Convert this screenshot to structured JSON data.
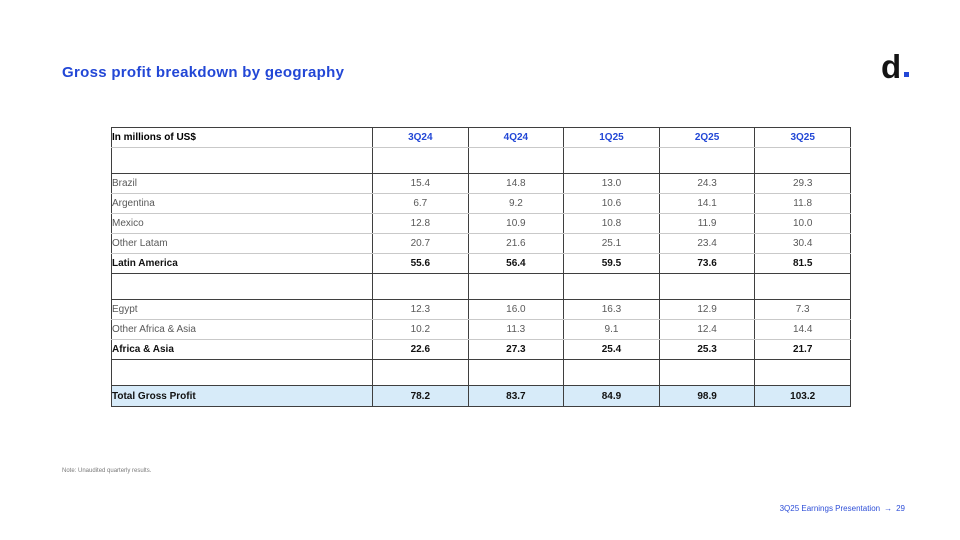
{
  "title": "Gross profit breakdown by geography",
  "logo": {
    "text": "d"
  },
  "table": {
    "header": {
      "label": "In millions of US$",
      "columns": [
        "3Q24",
        "4Q24",
        "1Q25",
        "2Q25",
        "3Q25"
      ]
    },
    "rows": [
      {
        "type": "spacer"
      },
      {
        "type": "data",
        "label": "Brazil",
        "values": [
          "15.4",
          "14.8",
          "13.0",
          "24.3",
          "29.3"
        ]
      },
      {
        "type": "data",
        "label": "Argentina",
        "values": [
          "6.7",
          "9.2",
          "10.6",
          "14.1",
          "11.8"
        ]
      },
      {
        "type": "data",
        "label": "Mexico",
        "values": [
          "12.8",
          "10.9",
          "10.8",
          "11.9",
          "10.0"
        ]
      },
      {
        "type": "data",
        "label": "Other Latam",
        "values": [
          "20.7",
          "21.6",
          "25.1",
          "23.4",
          "30.4"
        ]
      },
      {
        "type": "subtotal",
        "label": "Latin America",
        "values": [
          "55.6",
          "56.4",
          "59.5",
          "73.6",
          "81.5"
        ]
      },
      {
        "type": "spacer"
      },
      {
        "type": "data",
        "label": "Egypt",
        "values": [
          "12.3",
          "16.0",
          "16.3",
          "12.9",
          "7.3"
        ]
      },
      {
        "type": "data",
        "label": "Other Africa & Asia",
        "values": [
          "10.2",
          "11.3",
          "9.1",
          "12.4",
          "14.4"
        ]
      },
      {
        "type": "subtotal",
        "label": "Africa & Asia",
        "values": [
          "22.6",
          "27.3",
          "25.4",
          "25.3",
          "21.7"
        ]
      },
      {
        "type": "spacer"
      },
      {
        "type": "total",
        "label": "Total Gross Profit",
        "values": [
          "78.2",
          "83.7",
          "84.9",
          "98.9",
          "103.2"
        ]
      }
    ]
  },
  "note": "Note: Unaudited quarterly results.",
  "footer": {
    "label": "3Q25 Earnings Presentation",
    "arrow": "→",
    "page": "29"
  },
  "colors": {
    "accent": "#2247D6",
    "total_row_bg": "#D7EBF9"
  }
}
